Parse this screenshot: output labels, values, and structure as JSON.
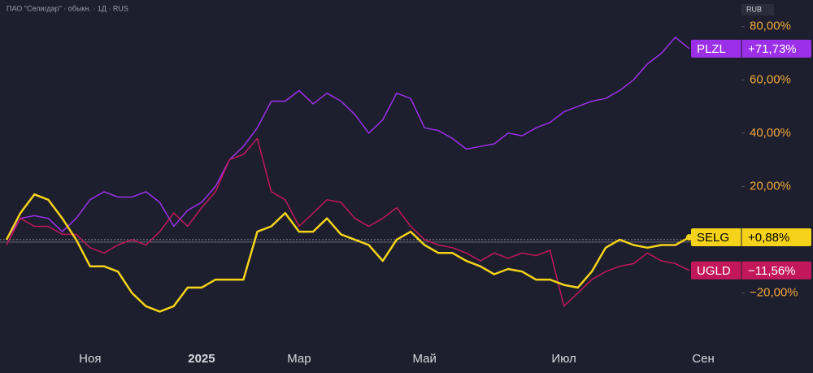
{
  "chart_data": {
    "type": "line",
    "title": "ПАО \"Селигдар\" · обыкн. · 1Д · RUS",
    "currency": "RUB",
    "categories": [
      null,
      null,
      null,
      null,
      null,
      null,
      "Ноя",
      null,
      null,
      null,
      null,
      null,
      null,
      null,
      "2025",
      null,
      null,
      null,
      null,
      null,
      null,
      "Мар",
      null,
      null,
      null,
      null,
      null,
      null,
      null,
      null,
      "Май",
      null,
      null,
      null,
      null,
      null,
      null,
      null,
      null,
      null,
      "Июл",
      null,
      null,
      null,
      null,
      null,
      null,
      null,
      null,
      null,
      "Сен"
    ],
    "ylim": [
      -40,
      90
    ],
    "yticks": [
      {
        "value": 80,
        "label": "80,00%"
      },
      {
        "value": 60,
        "label": "60,00%"
      },
      {
        "value": 40,
        "label": "40,00%"
      },
      {
        "value": 20,
        "label": "20,00%"
      },
      {
        "value": -20,
        "label": "−20,00%"
      }
    ],
    "baseline": 0,
    "series": [
      {
        "name": "PLZL",
        "color": "#9b30e8",
        "text_color": "#ffffff",
        "values": [
          0,
          8,
          9,
          8,
          3,
          8,
          15,
          18,
          16,
          16,
          18,
          14,
          5,
          11,
          14,
          20,
          30,
          35,
          42,
          52,
          52,
          56,
          51,
          55,
          52,
          47,
          40,
          45,
          55,
          53,
          42,
          41,
          38,
          34,
          35,
          36,
          40,
          39,
          42,
          44,
          48,
          50,
          52,
          53,
          56,
          60,
          66,
          70,
          76,
          71.73,
          null
        ],
        "value_labels": [
          null,
          null,
          null,
          null,
          null,
          null,
          null,
          null,
          null,
          null,
          null,
          null,
          null,
          null,
          null,
          null,
          null,
          null,
          null,
          null,
          null,
          null,
          null,
          null,
          null,
          null,
          null,
          null,
          null,
          null,
          null,
          null,
          null,
          null,
          null,
          null,
          null,
          null,
          null,
          null,
          null,
          null,
          null,
          null,
          null,
          null,
          null,
          null,
          null,
          "+71,73%",
          null
        ]
      },
      {
        "name": "UGLD",
        "color": "#c2185b",
        "text_color": "#ffffff",
        "values": [
          -2,
          8,
          5,
          5,
          2,
          2,
          -3,
          -5,
          -2,
          0,
          -2,
          3,
          10,
          5,
          12,
          18,
          30,
          32,
          38,
          18,
          15,
          5,
          10,
          15,
          14,
          8,
          5,
          8,
          12,
          5,
          0,
          -2,
          -3,
          -5,
          -8,
          -5,
          -7,
          -5,
          -6,
          -4,
          -25,
          -20,
          -15,
          -12,
          -10,
          -9,
          -5,
          -8,
          -9,
          -11.56,
          null
        ],
        "value_labels": [
          null,
          null,
          null,
          null,
          null,
          null,
          null,
          null,
          null,
          null,
          null,
          null,
          null,
          null,
          null,
          null,
          null,
          null,
          null,
          null,
          null,
          null,
          null,
          null,
          null,
          null,
          null,
          null,
          null,
          null,
          null,
          null,
          null,
          null,
          null,
          null,
          null,
          null,
          null,
          null,
          null,
          null,
          null,
          null,
          null,
          null,
          null,
          null,
          null,
          "−11,56%",
          null
        ]
      },
      {
        "name": "SELG",
        "color": "#f5d31a",
        "text_color": "#000000",
        "values": [
          0,
          10,
          17,
          15,
          8,
          0,
          -10,
          -10,
          -12,
          -20,
          -25,
          -27,
          -25,
          -18,
          -18,
          -15,
          -15,
          -15,
          3,
          5,
          10,
          3,
          3,
          8,
          2,
          0,
          -2,
          -8,
          0,
          3,
          -2,
          -5,
          -5,
          -8,
          -10,
          -13,
          -11,
          -12,
          -15,
          -15,
          -17,
          -18,
          -12,
          -3,
          0,
          -2,
          -3,
          -2,
          -2,
          0.88,
          null
        ],
        "value_labels": [
          null,
          null,
          null,
          null,
          null,
          null,
          null,
          null,
          null,
          null,
          null,
          null,
          null,
          null,
          null,
          null,
          null,
          null,
          null,
          null,
          null,
          null,
          null,
          null,
          null,
          null,
          null,
          null,
          null,
          null,
          null,
          null,
          null,
          null,
          null,
          null,
          null,
          null,
          null,
          null,
          null,
          null,
          null,
          null,
          null,
          null,
          null,
          null,
          null,
          "+0,88%",
          null
        ]
      }
    ]
  }
}
